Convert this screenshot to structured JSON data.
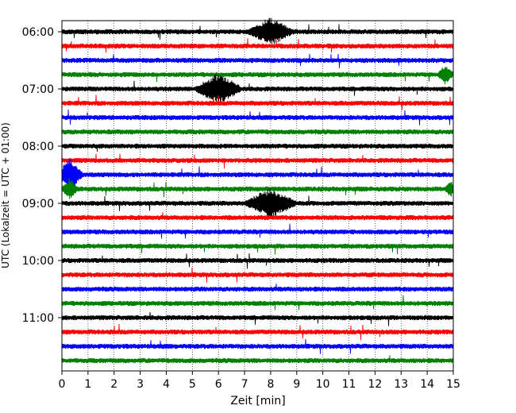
{
  "chart_data": {
    "type": "line",
    "subtype": "seismic helicorder",
    "xlabel": "Zeit  [min]",
    "ylabel": "UTC (Lokalzeit = UTC + 01:00)",
    "xlim": [
      0,
      15
    ],
    "x_ticks": [
      0,
      1,
      2,
      3,
      4,
      5,
      6,
      7,
      8,
      9,
      10,
      11,
      12,
      13,
      14,
      15
    ],
    "y_range_minutes": [
      "05:54",
      "11:57"
    ],
    "y_ticks": [
      {
        "label": "06:00",
        "row": 0
      },
      {
        "label": "07:00",
        "row": 4
      },
      {
        "label": "08:00",
        "row": 8
      },
      {
        "label": "09:00",
        "row": 12
      },
      {
        "label": "10:00",
        "row": 16
      },
      {
        "label": "11:00",
        "row": 20
      }
    ],
    "row_interval_min": 15,
    "row_count": 24,
    "trace_colors": [
      "#000000",
      "#ff0000",
      "#0000ff",
      "#008000"
    ],
    "grid": {
      "x": "dotted",
      "y": "none"
    },
    "events": [
      {
        "row": 0,
        "x_min": 8.0,
        "amplitude": 16,
        "width_min": 0.9
      },
      {
        "row": 3,
        "x_min": 14.7,
        "amplitude": 10,
        "width_min": 0.3
      },
      {
        "row": 4,
        "x_min": 6.0,
        "amplitude": 18,
        "width_min": 0.9
      },
      {
        "row": 10,
        "x_min": 0.3,
        "amplitude": 20,
        "width_min": 0.5
      },
      {
        "row": 11,
        "x_min": 0.3,
        "amplitude": 12,
        "width_min": 0.3
      },
      {
        "row": 12,
        "x_min": 8.0,
        "amplitude": 18,
        "width_min": 1.0
      },
      {
        "row": 11,
        "x_min": 14.9,
        "amplitude": 10,
        "width_min": 0.2
      }
    ]
  }
}
